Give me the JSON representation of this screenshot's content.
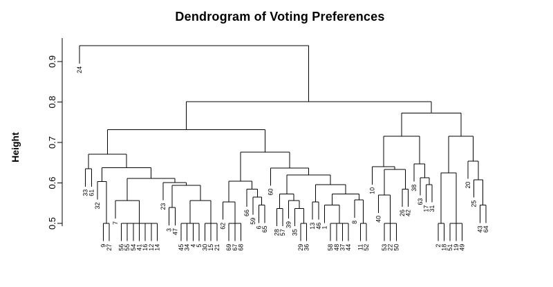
{
  "chart_data": {
    "type": "dendrogram",
    "title": "Dendrogram of Voting Preferences",
    "ylabel": "Height",
    "line_color": "#000000",
    "background_color": "#ffffff",
    "y_axis": {
      "ticks": [
        0.5,
        0.6,
        0.7,
        0.8,
        0.9
      ],
      "range_shown": [
        0.5,
        0.94
      ],
      "grid": false
    },
    "hang_fraction": 0.044,
    "leaf_order": [
      "24",
      "33",
      "61",
      "32",
      "9",
      "27",
      "7",
      "56",
      "55",
      "54",
      "41",
      "16",
      "12",
      "14",
      "23",
      "3",
      "47",
      "45",
      "34",
      "4",
      "5",
      "30",
      "15",
      "21",
      "62",
      "69",
      "67",
      "68",
      "66",
      "59",
      "6",
      "65",
      "60",
      "28",
      "57",
      "39",
      "35",
      "29",
      "36",
      "13",
      "46",
      "1",
      "58",
      "48",
      "37",
      "44",
      "8",
      "11",
      "52",
      "10",
      "40",
      "53",
      "22",
      "50",
      "26",
      "42",
      "38",
      "63",
      "17",
      "31",
      "2",
      "18",
      "51",
      "19",
      "49",
      "20",
      "25",
      "43",
      "64"
    ],
    "tree": {
      "h": 0.939,
      "c": [
        24,
        {
          "h": 0.801,
          "c": [
            {
              "h": 0.732,
              "c": [
                {
                  "h": 0.671,
                  "c": [
                    {
                      "h": 0.635,
                      "c": [
                        33,
                        61
                      ]
                    },
                    {
                      "h": 0.638,
                      "c": [
                        {
                          "h": 0.603,
                          "c": [
                            32,
                            {
                              "h": 0.5,
                              "c": [
                                9,
                                27
                              ]
                            }
                          ]
                        },
                        {
                          "h": 0.611,
                          "c": [
                            {
                              "h": 0.556,
                              "c": [
                                7,
                                {
                                  "h": 0.5,
                                  "c": [
                                    56,
                                    55,
                                    54,
                                    41,
                                    16,
                                    12,
                                    14
                                  ]
                                }
                              ]
                            },
                            {
                              "h": 0.601,
                              "c": [
                                23,
                                {
                                  "h": 0.594,
                                  "c": [
                                    {
                                      "h": 0.539,
                                      "c": [
                                        3,
                                        47
                                      ]
                                    },
                                    {
                                      "h": 0.556,
                                      "c": [
                                        {
                                          "h": 0.5,
                                          "c": [
                                            45,
                                            34,
                                            4,
                                            5
                                          ]
                                        },
                                        {
                                          "h": 0.5,
                                          "c": [
                                            30,
                                            15,
                                            21
                                          ]
                                        }
                                      ]
                                    }
                                  ]
                                }
                              ]
                            }
                          ]
                        }
                      ]
                    }
                  ]
                },
                {
                  "h": 0.676,
                  "c": [
                    {
                      "h": 0.604,
                      "c": [
                        {
                          "h": 0.553,
                          "c": [
                            62,
                            {
                              "h": 0.5,
                              "c": [
                                69,
                                67,
                                68
                              ]
                            }
                          ]
                        },
                        {
                          "h": 0.585,
                          "c": [
                            66,
                            {
                              "h": 0.565,
                              "c": [
                                59,
                                {
                                  "h": 0.545,
                                  "c": [
                                    6,
                                    65
                                  ]
                                }
                              ]
                            }
                          ]
                        }
                      ]
                    },
                    {
                      "h": 0.637,
                      "c": [
                        60,
                        {
                          "h": 0.62,
                          "c": [
                            {
                              "h": 0.573,
                              "c": [
                                {
                                  "h": 0.537,
                                  "c": [
                                    28,
                                    57
                                  ]
                                },
                                {
                                  "h": 0.556,
                                  "c": [
                                    39,
                                    {
                                      "h": 0.537,
                                      "c": [
                                        35,
                                        {
                                          "h": 0.5,
                                          "c": [
                                            29,
                                            36
                                          ]
                                        }
                                      ]
                                    }
                                  ]
                                }
                              ]
                            },
                            {
                              "h": 0.596,
                              "c": [
                                {
                                  "h": 0.553,
                                  "c": [
                                    13,
                                    46
                                  ]
                                },
                                {
                                  "h": 0.573,
                                  "c": [
                                    {
                                      "h": 0.545,
                                      "c": [
                                        1,
                                        {
                                          "h": 0.5,
                                          "c": [
                                            58,
                                            48,
                                            37,
                                            44
                                          ]
                                        }
                                      ]
                                    },
                                    {
                                      "h": 0.558,
                                      "c": [
                                        8,
                                        {
                                          "h": 0.5,
                                          "c": [
                                            11,
                                            52
                                          ]
                                        }
                                      ]
                                    }
                                  ]
                                }
                              ]
                            }
                          ]
                        }
                      ]
                    }
                  ]
                }
              ]
            },
            {
              "h": 0.773,
              "c": [
                {
                  "h": 0.715,
                  "c": [
                    {
                      "h": 0.64,
                      "c": [
                        10,
                        {
                          "h": 0.633,
                          "c": [
                            {
                              "h": 0.57,
                              "c": [
                                40,
                                {
                                  "h": 0.5,
                                  "c": [
                                    53,
                                    22,
                                    50
                                  ]
                                }
                              ]
                            },
                            {
                              "h": 0.585,
                              "c": [
                                26,
                                42
                              ]
                            }
                          ]
                        }
                      ]
                    },
                    {
                      "h": 0.647,
                      "c": [
                        38,
                        {
                          "h": 0.613,
                          "c": [
                            63,
                            {
                              "h": 0.596,
                              "c": [
                                17,
                                31
                              ]
                            }
                          ]
                        }
                      ]
                    }
                  ]
                },
                {
                  "h": 0.715,
                  "c": [
                    {
                      "h": 0.625,
                      "c": [
                        {
                          "h": 0.5,
                          "c": [
                            2,
                            18
                          ]
                        },
                        {
                          "h": 0.5,
                          "c": [
                            51,
                            19,
                            49
                          ]
                        }
                      ]
                    },
                    {
                      "h": 0.654,
                      "c": [
                        20,
                        {
                          "h": 0.608,
                          "c": [
                            25,
                            {
                              "h": 0.545,
                              "c": [
                                43,
                                64
                              ]
                            }
                          ]
                        }
                      ]
                    }
                  ]
                }
              ]
            }
          ]
        }
      ]
    }
  }
}
